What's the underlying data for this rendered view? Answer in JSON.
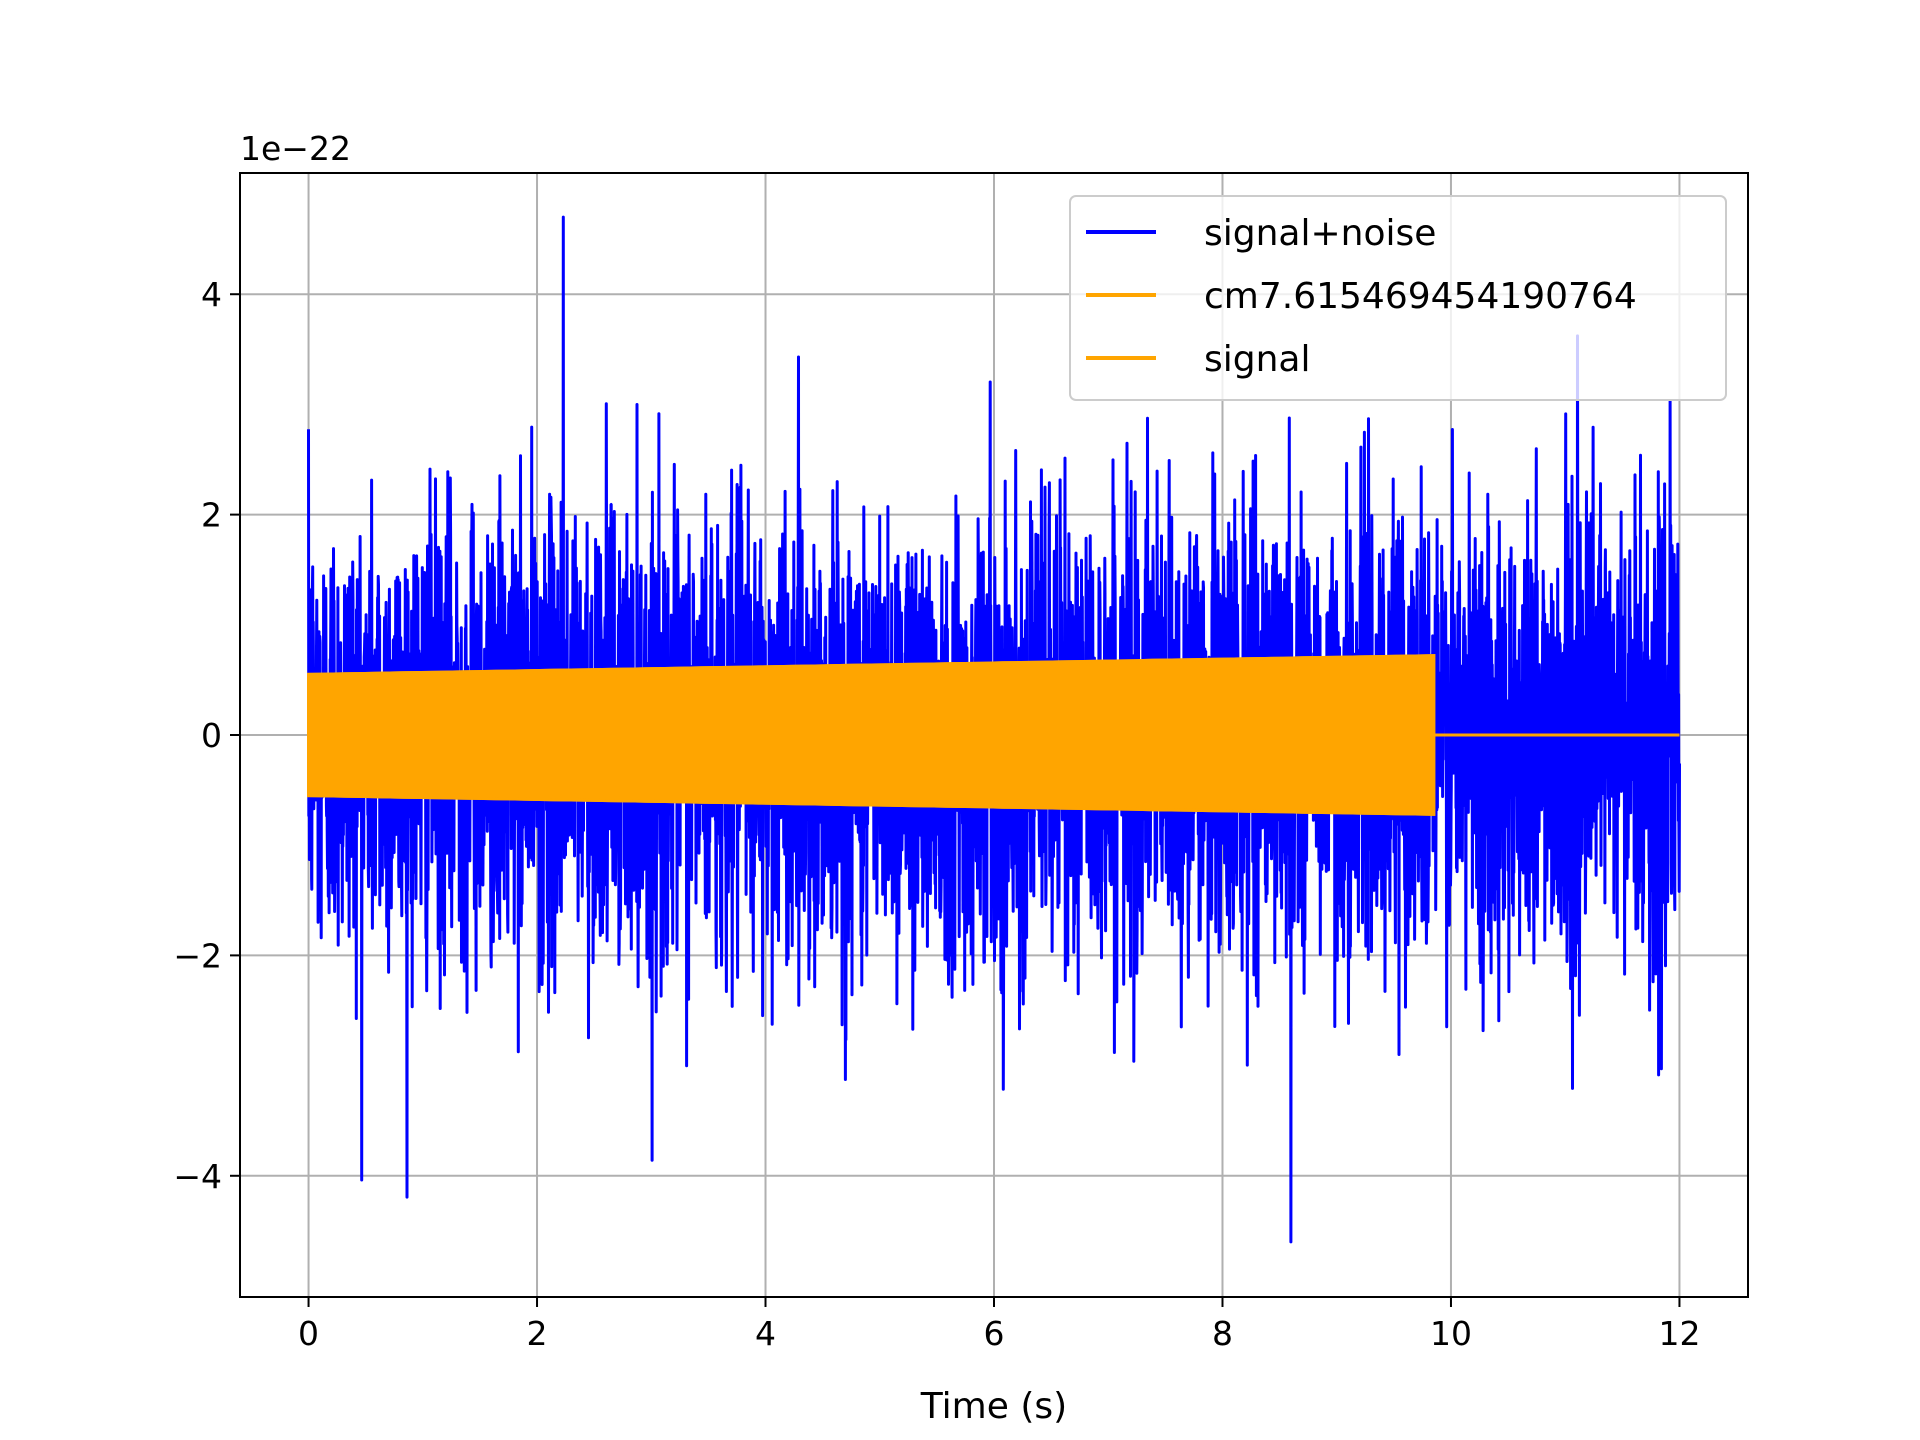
{
  "chart_data": {
    "type": "line",
    "title": "",
    "xlabel": "Time (s)",
    "ylabel": "",
    "y_offset_text": "1e−22",
    "y_scale_factor": 1e-22,
    "xlim": [
      -0.6,
      12.6
    ],
    "ylim": [
      -5.1e-22,
      5.1e-22
    ],
    "x_ticks": [
      0,
      2,
      4,
      6,
      8,
      10,
      12
    ],
    "x_tick_labels": [
      "0",
      "2",
      "4",
      "6",
      "8",
      "10",
      "12"
    ],
    "y_ticks": [
      -4e-22,
      -2e-22,
      0,
      2e-22,
      4e-22
    ],
    "y_tick_labels": [
      "−4",
      "−2",
      "0",
      "2",
      "4"
    ],
    "grid": true,
    "legend_position": "top-right",
    "series": [
      {
        "name": "signal+noise",
        "color": "#0000ff",
        "x_range": [
          0,
          12
        ],
        "noise_std": 1e-22,
        "extremes": {
          "max": 4.7e-22,
          "max_at": 2.23,
          "min": -4.6e-22,
          "min_at": 8.6
        }
      },
      {
        "name": "cm7.615469454190764",
        "color": "#ffa500",
        "x_range": [
          0,
          9.85
        ],
        "amplitude_start": 5.5e-23,
        "amplitude_end": 7.2e-23,
        "tail_x_range": [
          9.85,
          12
        ],
        "tail_value": 0
      },
      {
        "name": "signal",
        "color": "#ffa500",
        "x_range": [
          0,
          9.85
        ],
        "amplitude_start": 5.5e-23,
        "amplitude_end": 7.2e-23,
        "tail_x_range": [
          9.85,
          12
        ],
        "tail_value": 0
      }
    ]
  }
}
